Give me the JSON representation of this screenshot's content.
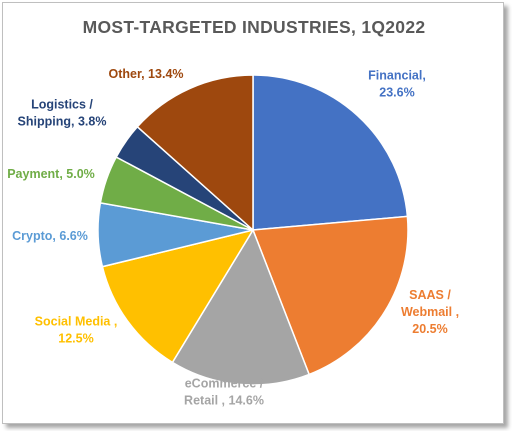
{
  "chart_data": {
    "type": "pie",
    "title": "MOST-TARGETED INDUSTRIES, 1Q2022",
    "slices": [
      {
        "label_lines": [
          "Financial,",
          "23.6%"
        ],
        "value": 23.6,
        "color": "#4472c4"
      },
      {
        "label_lines": [
          "SAAS /",
          "Webmail ,",
          "20.5%"
        ],
        "value": 20.5,
        "color": "#ed7d31"
      },
      {
        "label_lines": [
          "eCommerce /",
          "Retail , 14.6%"
        ],
        "value": 14.6,
        "color": "#a5a5a5"
      },
      {
        "label_lines": [
          "Social Media ,",
          "12.5%"
        ],
        "value": 12.5,
        "color": "#ffc000"
      },
      {
        "label_lines": [
          "Crypto, 6.6%"
        ],
        "value": 6.6,
        "color": "#5b9bd5"
      },
      {
        "label_lines": [
          "Payment, 5.0%"
        ],
        "value": 5.0,
        "color": "#70ad47"
      },
      {
        "label_lines": [
          "Logistics /",
          "Shipping, 3.8%"
        ],
        "value": 3.8,
        "color": "#264478"
      },
      {
        "label_lines": [
          "Other, 13.4%"
        ],
        "value": 13.4,
        "color": "#9e480e"
      }
    ],
    "label_colors": [
      "#4472c4",
      "#ed7d31",
      "#a5a5a5",
      "#ffc000",
      "#5b9bd5",
      "#70ad47",
      "#264478",
      "#9e480e"
    ],
    "start": "12 o'clock",
    "direction": "clockwise",
    "legend": "none"
  }
}
